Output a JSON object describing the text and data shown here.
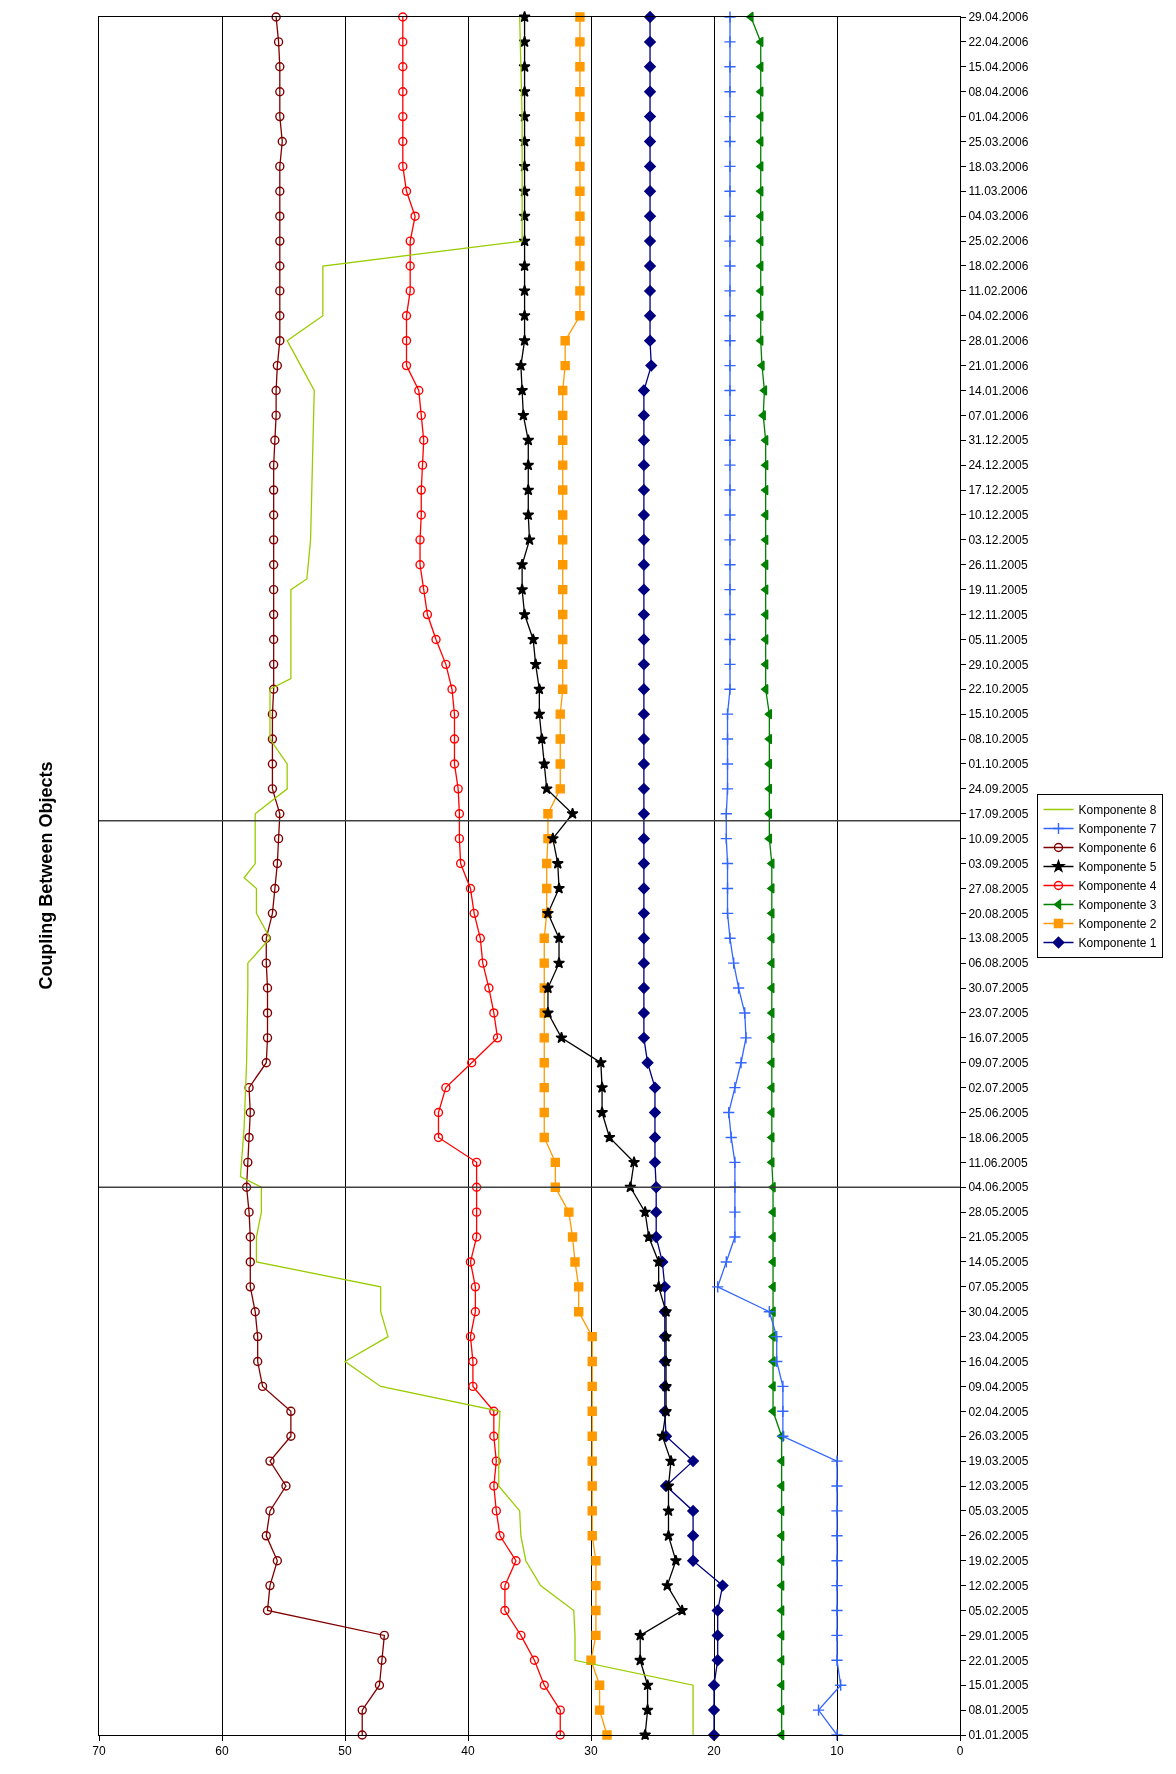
{
  "chart_data": {
    "type": "line",
    "title": "Coupling Between Objects",
    "x": [
      "2005-01-01",
      "2005-01-08",
      "2005-01-15",
      "2005-01-22",
      "2005-01-29",
      "2005-02-05",
      "2005-02-12",
      "2005-02-19",
      "2005-02-26",
      "2005-03-05",
      "2005-03-12",
      "2005-03-19",
      "2005-03-26",
      "2005-04-02",
      "2005-04-09",
      "2005-04-16",
      "2005-04-23",
      "2005-04-30",
      "2005-05-07",
      "2005-05-14",
      "2005-05-21",
      "2005-05-28",
      "2005-06-04",
      "2005-06-11",
      "2005-06-18",
      "2005-06-25",
      "2005-07-02",
      "2005-07-09",
      "2005-07-16",
      "2005-07-23",
      "2005-07-30",
      "2005-08-06",
      "2005-08-13",
      "2005-08-20",
      "2005-08-27",
      "2005-09-03",
      "2005-09-10",
      "2005-09-17",
      "2005-09-24",
      "2005-10-01",
      "2005-10-08",
      "2005-10-15",
      "2005-10-22",
      "2005-10-29",
      "2005-11-05",
      "2005-11-12",
      "2005-11-19",
      "2005-11-26",
      "2005-12-03",
      "2005-12-10",
      "2005-12-17",
      "2005-12-24",
      "2005-12-31",
      "2006-01-07",
      "2006-01-14",
      "2006-01-21",
      "2006-01-28",
      "2006-02-04",
      "2006-02-11",
      "2006-02-18",
      "2006-02-25",
      "2006-03-04",
      "2006-03-11",
      "2006-03-18",
      "2006-03-25",
      "2006-04-01",
      "2006-04-08",
      "2006-04-15",
      "2006-04-22",
      "2006-04-29"
    ],
    "series": [
      {
        "name": "Komponente 1",
        "color": "#000080",
        "marker": "diamond",
        "values": [
          20.0,
          20.0,
          20.0,
          19.7,
          19.7,
          19.7,
          19.3,
          21.7,
          21.7,
          21.7,
          23.9,
          21.7,
          23.9,
          24.0,
          24.0,
          24.0,
          24.0,
          24.0,
          24.0,
          24.2,
          24.7,
          24.7,
          24.7,
          24.8,
          24.8,
          24.8,
          24.8,
          25.4,
          25.7,
          25.7,
          25.7,
          25.7,
          25.7,
          25.7,
          25.7,
          25.7,
          25.7,
          25.7,
          25.7,
          25.7,
          25.7,
          25.7,
          25.7,
          25.7,
          25.7,
          25.7,
          25.7,
          25.7,
          25.7,
          25.7,
          25.7,
          25.7,
          25.7,
          25.7,
          25.7,
          25.1,
          25.2,
          25.2,
          25.2,
          25.2,
          25.2,
          25.2,
          25.2,
          25.2,
          25.2,
          25.2,
          25.2,
          25.2,
          25.2,
          25.2
        ]
      },
      {
        "name": "Komponente 2",
        "color": "#ff9900",
        "marker": "square",
        "values": [
          28.7,
          29.3,
          29.3,
          30.0,
          29.6,
          29.6,
          29.6,
          29.6,
          29.9,
          29.9,
          29.9,
          29.9,
          29.9,
          29.9,
          29.9,
          29.9,
          29.9,
          31.0,
          31.0,
          31.3,
          31.5,
          31.8,
          32.9,
          32.9,
          33.8,
          33.8,
          33.8,
          33.8,
          33.8,
          33.8,
          33.8,
          33.8,
          33.8,
          33.6,
          33.6,
          33.6,
          33.5,
          33.5,
          32.5,
          32.5,
          32.5,
          32.5,
          32.3,
          32.3,
          32.3,
          32.3,
          32.3,
          32.3,
          32.3,
          32.3,
          32.3,
          32.3,
          32.3,
          32.3,
          32.3,
          32.1,
          32.1,
          30.9,
          30.9,
          30.9,
          30.9,
          30.9,
          30.9,
          30.9,
          30.9,
          30.9,
          30.9,
          30.9,
          30.9,
          30.9
        ]
      },
      {
        "name": "Komponente 3",
        "color": "#008000",
        "marker": "triangle",
        "values": [
          14.5,
          14.5,
          14.5,
          14.5,
          14.5,
          14.5,
          14.5,
          14.5,
          14.5,
          14.5,
          14.5,
          14.5,
          14.5,
          15.2,
          15.2,
          15.2,
          15.2,
          15.2,
          15.2,
          15.2,
          15.2,
          15.2,
          15.2,
          15.3,
          15.3,
          15.3,
          15.3,
          15.3,
          15.3,
          15.3,
          15.3,
          15.3,
          15.3,
          15.3,
          15.3,
          15.3,
          15.5,
          15.5,
          15.5,
          15.5,
          15.5,
          15.5,
          15.8,
          15.8,
          15.8,
          15.8,
          15.8,
          15.8,
          15.8,
          15.8,
          15.8,
          15.8,
          15.8,
          16.0,
          15.9,
          16.1,
          16.2,
          16.2,
          16.2,
          16.2,
          16.2,
          16.2,
          16.2,
          16.2,
          16.2,
          16.2,
          16.2,
          16.2,
          16.2,
          17.0
        ]
      },
      {
        "name": "Komponente 4",
        "color": "#ff0000",
        "marker": "circle",
        "values": [
          32.5,
          32.5,
          33.8,
          34.6,
          35.7,
          37.0,
          37.0,
          36.1,
          37.4,
          37.7,
          37.9,
          37.7,
          37.9,
          37.9,
          39.6,
          39.6,
          39.8,
          39.4,
          39.4,
          39.8,
          39.3,
          39.3,
          39.3,
          39.3,
          42.4,
          42.4,
          41.8,
          39.7,
          37.6,
          37.9,
          38.3,
          38.8,
          39.0,
          39.5,
          39.8,
          40.6,
          40.7,
          40.7,
          40.8,
          41.1,
          41.1,
          41.1,
          41.3,
          41.8,
          42.6,
          43.3,
          43.6,
          43.9,
          43.9,
          43.8,
          43.8,
          43.7,
          43.6,
          43.8,
          44.0,
          45.0,
          45.0,
          45.0,
          44.7,
          44.7,
          44.7,
          44.3,
          45.0,
          45.3,
          45.3,
          45.3,
          45.3,
          45.3,
          45.3,
          45.3
        ]
      },
      {
        "name": "Komponente 5",
        "color": "#000000",
        "marker": "star",
        "values": [
          25.6,
          25.4,
          25.4,
          26.0,
          26.0,
          22.6,
          23.8,
          23.1,
          23.7,
          23.7,
          23.7,
          23.5,
          24.2,
          23.9,
          23.9,
          23.9,
          23.9,
          23.9,
          24.5,
          24.5,
          25.3,
          25.6,
          26.8,
          26.5,
          28.5,
          29.1,
          29.1,
          29.2,
          32.4,
          33.5,
          33.5,
          32.6,
          32.6,
          33.5,
          32.6,
          32.7,
          33.1,
          31.5,
          33.6,
          33.8,
          34.0,
          34.2,
          34.2,
          34.5,
          34.7,
          35.4,
          35.6,
          35.6,
          35.0,
          35.1,
          35.1,
          35.1,
          35.1,
          35.5,
          35.6,
          35.7,
          35.4,
          35.4,
          35.4,
          35.4,
          35.4,
          35.4,
          35.4,
          35.4,
          35.4,
          35.4,
          35.4,
          35.4,
          35.4,
          35.4
        ]
      },
      {
        "name": "Komponente 6",
        "color": "#800000",
        "marker": "circle",
        "values": [
          48.6,
          48.6,
          47.2,
          47.0,
          46.8,
          56.3,
          56.1,
          55.5,
          56.4,
          56.1,
          54.8,
          56.1,
          54.4,
          54.4,
          56.7,
          57.1,
          57.1,
          57.3,
          57.7,
          57.7,
          57.7,
          57.8,
          58.0,
          57.9,
          57.8,
          57.7,
          57.8,
          56.4,
          56.3,
          56.3,
          56.3,
          56.4,
          56.4,
          55.9,
          55.7,
          55.5,
          55.4,
          55.3,
          55.9,
          55.9,
          55.9,
          55.9,
          55.8,
          55.8,
          55.8,
          55.8,
          55.8,
          55.8,
          55.8,
          55.8,
          55.8,
          55.8,
          55.7,
          55.6,
          55.6,
          55.5,
          55.3,
          55.3,
          55.3,
          55.3,
          55.3,
          55.3,
          55.3,
          55.3,
          55.1,
          55.3,
          55.3,
          55.3,
          55.4,
          55.6
        ]
      },
      {
        "name": "Komponente 7",
        "color": "#3366ff",
        "marker": "cross",
        "values": [
          10.0,
          11.5,
          9.7,
          10.0,
          10.0,
          10.0,
          10.0,
          10.0,
          10.0,
          10.0,
          10.0,
          10.0,
          14.4,
          14.4,
          14.4,
          14.9,
          14.9,
          15.5,
          19.7,
          19.0,
          18.3,
          18.3,
          18.3,
          18.3,
          18.6,
          18.8,
          18.3,
          17.8,
          17.4,
          17.5,
          18.0,
          18.4,
          18.7,
          18.9,
          18.9,
          18.9,
          19.0,
          19.0,
          18.9,
          18.9,
          18.9,
          18.9,
          18.7,
          18.7,
          18.7,
          18.7,
          18.7,
          18.7,
          18.7,
          18.7,
          18.7,
          18.7,
          18.7,
          18.7,
          18.7,
          18.7,
          18.7,
          18.7,
          18.7,
          18.7,
          18.7,
          18.7,
          18.7,
          18.7,
          18.7,
          18.7,
          18.7,
          18.7,
          18.7,
          18.7
        ]
      },
      {
        "name": "Komponente 8",
        "color": "#99cc00",
        "marker": "none",
        "x": [
          "2005-01-01",
          "2005-01-08",
          "2005-01-15",
          "2005-01-22",
          "2005-01-29",
          "2005-02-05",
          "2005-02-12",
          "2005-02-19",
          "2005-02-26",
          "2005-03-05",
          "2005-03-12",
          "2005-03-19",
          "2005-03-26",
          "2005-04-02",
          "2005-04-09",
          "2005-04-16",
          "2005-04-23",
          "2005-04-30",
          "2005-05-07",
          "2005-05-14",
          "2005-05-21",
          "2005-05-28",
          "2005-06-04",
          "2005-06-07",
          "2005-06-21",
          "2005-07-09",
          "2005-07-30",
          "2005-08-06",
          "2005-08-13",
          "2005-08-20",
          "2005-08-27",
          "2005-08-30",
          "2005-09-03",
          "2005-09-17",
          "2005-09-24",
          "2005-10-01",
          "2005-10-08",
          "2005-10-22",
          "2005-10-25",
          "2005-11-19",
          "2005-11-22",
          "2005-12-03",
          "2005-12-17",
          "2006-01-14",
          "2006-01-28",
          "2006-02-04",
          "2006-02-18",
          "2006-02-25",
          "2006-03-11",
          "2006-04-01",
          "2006-04-29"
        ],
        "values": [
          21.7,
          21.7,
          21.7,
          31.3,
          31.3,
          31.4,
          34.1,
          35.3,
          35.7,
          35.8,
          37.5,
          37.5,
          37.5,
          37.4,
          47.1,
          50.0,
          46.5,
          47.1,
          47.1,
          57.2,
          57.2,
          56.8,
          56.8,
          58.5,
          58.2,
          58.0,
          57.9,
          57.9,
          56.1,
          57.2,
          57.2,
          58.2,
          57.3,
          57.3,
          54.7,
          54.7,
          56.1,
          56.1,
          54.4,
          54.4,
          53.1,
          52.8,
          52.7,
          52.5,
          54.7,
          51.8,
          51.8,
          35.6,
          35.6,
          35.6,
          35.8
        ]
      }
    ],
    "orientation": "horizontal",
    "xlim": [
      70,
      0
    ],
    "xticks": [
      0,
      10,
      20,
      30,
      40,
      50,
      60,
      70
    ],
    "ylim": [
      "2005-01-01",
      "2006-04-29"
    ],
    "yticks": [
      {
        "value": "2005-01-01",
        "label": "01.01.2005"
      },
      {
        "value": "2005-01-08",
        "label": "08.01.2005"
      },
      {
        "value": "2005-01-15",
        "label": "15.01.2005"
      },
      {
        "value": "2005-01-22",
        "label": "22.01.2005"
      },
      {
        "value": "2005-01-29",
        "label": "29.01.2005"
      },
      {
        "value": "2005-02-05",
        "label": "05.02.2005"
      },
      {
        "value": "2005-02-12",
        "label": "12.02.2005"
      },
      {
        "value": "2005-02-19",
        "label": "19.02.2005"
      },
      {
        "value": "2005-02-26",
        "label": "26.02.2005"
      },
      {
        "value": "2005-03-05",
        "label": "05.03.2005"
      },
      {
        "value": "2005-03-12",
        "label": "12.03.2005"
      },
      {
        "value": "2005-03-19",
        "label": "19.03.2005"
      },
      {
        "value": "2005-03-26",
        "label": "26.03.2005"
      },
      {
        "value": "2005-04-02",
        "label": "02.04.2005"
      },
      {
        "value": "2005-04-09",
        "label": "09.04.2005"
      },
      {
        "value": "2005-04-16",
        "label": "16.04.2005"
      },
      {
        "value": "2005-04-23",
        "label": "23.04.2005"
      },
      {
        "value": "2005-04-30",
        "label": "30.04.2005"
      },
      {
        "value": "2005-05-07",
        "label": "07.05.2005"
      },
      {
        "value": "2005-05-14",
        "label": "14.05.2005"
      },
      {
        "value": "2005-05-21",
        "label": "21.05.2005"
      },
      {
        "value": "2005-05-28",
        "label": "28.05.2005"
      },
      {
        "value": "2005-06-04",
        "label": "04.06.2005"
      },
      {
        "value": "2005-06-11",
        "label": "11.06.2005"
      },
      {
        "value": "2005-06-18",
        "label": "18.06.2005"
      },
      {
        "value": "2005-06-25",
        "label": "25.06.2005"
      },
      {
        "value": "2005-07-02",
        "label": "02.07.2005"
      },
      {
        "value": "2005-07-09",
        "label": "09.07.2005"
      },
      {
        "value": "2005-07-16",
        "label": "16.07.2005"
      },
      {
        "value": "2005-07-23",
        "label": "23.07.2005"
      },
      {
        "value": "2005-07-30",
        "label": "30.07.2005"
      },
      {
        "value": "2005-08-06",
        "label": "06.08.2005"
      },
      {
        "value": "2005-08-13",
        "label": "13.08.2005"
      },
      {
        "value": "2005-08-20",
        "label": "20.08.2005"
      },
      {
        "value": "2005-08-27",
        "label": "27.08.2005"
      },
      {
        "value": "2005-09-03",
        "label": "03.09.2005"
      },
      {
        "value": "2005-09-10",
        "label": "10.09.2005"
      },
      {
        "value": "2005-09-17",
        "label": "17.09.2005"
      },
      {
        "value": "2005-09-24",
        "label": "24.09.2005"
      },
      {
        "value": "2005-10-01",
        "label": "01.10.2005"
      },
      {
        "value": "2005-10-08",
        "label": "08.10.2005"
      },
      {
        "value": "2005-10-15",
        "label": "15.10.2005"
      },
      {
        "value": "2005-10-22",
        "label": "22.10.2005"
      },
      {
        "value": "2005-10-29",
        "label": "29.10.2005"
      },
      {
        "value": "2005-11-05",
        "label": "05.11.2005"
      },
      {
        "value": "2005-11-12",
        "label": "12.11.2005"
      },
      {
        "value": "2005-11-19",
        "label": "19.11.2005"
      },
      {
        "value": "2005-11-26",
        "label": "26.11.2005"
      },
      {
        "value": "2005-12-03",
        "label": "03.12.2005"
      },
      {
        "value": "2005-12-10",
        "label": "10.12.2005"
      },
      {
        "value": "2005-12-17",
        "label": "17.12.2005"
      },
      {
        "value": "2005-12-24",
        "label": "24.12.2005"
      },
      {
        "value": "2005-12-31",
        "label": "31.12.2005"
      },
      {
        "value": "2006-01-07",
        "label": "07.01.2006"
      },
      {
        "value": "2006-01-14",
        "label": "14.01.2006"
      },
      {
        "value": "2006-01-21",
        "label": "21.01.2006"
      },
      {
        "value": "2006-01-28",
        "label": "28.01.2006"
      },
      {
        "value": "2006-02-04",
        "label": "04.02.2006"
      },
      {
        "value": "2006-02-11",
        "label": "11.02.2006"
      },
      {
        "value": "2006-02-18",
        "label": "18.02.2006"
      },
      {
        "value": "2006-02-25",
        "label": "25.02.2006"
      },
      {
        "value": "2006-03-04",
        "label": "04.03.2006"
      },
      {
        "value": "2006-03-11",
        "label": "11.03.2006"
      },
      {
        "value": "2006-03-18",
        "label": "18.03.2006"
      },
      {
        "value": "2006-03-25",
        "label": "25.03.2006"
      },
      {
        "value": "2006-04-01",
        "label": "01.04.2006"
      },
      {
        "value": "2006-04-08",
        "label": "08.04.2006"
      },
      {
        "value": "2006-04-15",
        "label": "15.04.2006"
      },
      {
        "value": "2006-04-22",
        "label": "22.04.2006"
      },
      {
        "value": "2006-04-29",
        "label": "29.04.2006"
      }
    ],
    "ref_lines": [
      {
        "axis": "y",
        "value": "2005-06-04",
        "color": "#404040"
      },
      {
        "axis": "y",
        "value": "2005-09-15",
        "color": "#404040"
      }
    ],
    "grid": "x",
    "legend": "right",
    "line_style": "solid"
  }
}
